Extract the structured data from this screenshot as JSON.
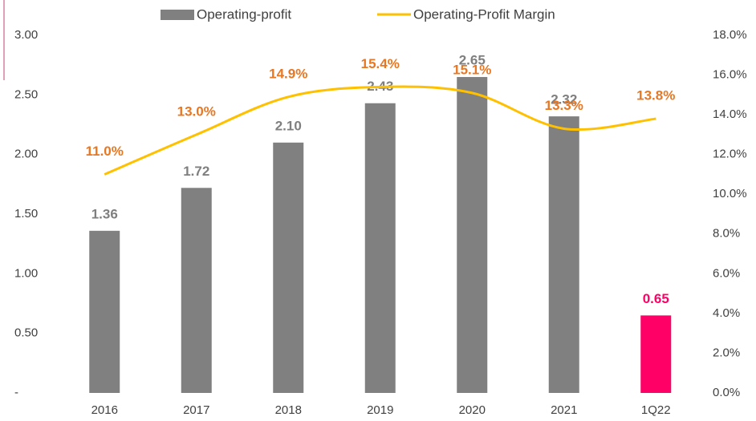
{
  "chart_data": {
    "type": "bar_line",
    "categories": [
      "2016",
      "2017",
      "2018",
      "2019",
      "2020",
      "2021",
      "1Q22"
    ],
    "series": [
      {
        "name": "Operating-profit",
        "type": "bar",
        "color": "#808080",
        "colors": [
          "#808080",
          "#808080",
          "#808080",
          "#808080",
          "#808080",
          "#808080",
          "#ff0066"
        ],
        "label_colors": [
          "#7f7f7f",
          "#7f7f7f",
          "#7f7f7f",
          "#7f7f7f",
          "#7f7f7f",
          "#7f7f7f",
          "#ff0066"
        ],
        "values": [
          1.36,
          1.72,
          2.1,
          2.43,
          2.65,
          2.32,
          0.65
        ],
        "value_labels": [
          "1.36",
          "1.72",
          "2.10",
          "2.43",
          "2.65",
          "2.32",
          "0.65"
        ]
      },
      {
        "name": "Operating-Profit Margin",
        "type": "line",
        "axis": "y2",
        "color": "#ffc000",
        "label_color": "#e87722",
        "values": [
          11.0,
          13.0,
          14.9,
          15.4,
          15.1,
          13.3,
          13.8
        ],
        "value_labels": [
          "11.0%",
          "13.0%",
          "14.9%",
          "15.4%",
          "15.1%",
          "13.3%",
          "13.8%"
        ]
      }
    ],
    "ylim": [
      0,
      3
    ],
    "yticks": [
      {
        "value": 0,
        "label": "-"
      },
      {
        "value": 0.5,
        "label": "0.50"
      },
      {
        "value": 1,
        "label": "1.00"
      },
      {
        "value": 1.5,
        "label": "1.50"
      },
      {
        "value": 2,
        "label": "2.00"
      },
      {
        "value": 2.5,
        "label": "2.50"
      },
      {
        "value": 3,
        "label": "3.00"
      }
    ],
    "y2lim": [
      0,
      18
    ],
    "y2ticks": [
      {
        "value": 0,
        "label": "0.0%"
      },
      {
        "value": 2,
        "label": "2.0%"
      },
      {
        "value": 4,
        "label": "4.0%"
      },
      {
        "value": 6,
        "label": "6.0%"
      },
      {
        "value": 8,
        "label": "8.0%"
      },
      {
        "value": 10,
        "label": "10.0%"
      },
      {
        "value": 12,
        "label": "12.0%"
      },
      {
        "value": 14,
        "label": "14.0%"
      },
      {
        "value": 16,
        "label": "16.0%"
      },
      {
        "value": 18,
        "label": "18.0%"
      }
    ],
    "legend": "top",
    "grid": false
  }
}
